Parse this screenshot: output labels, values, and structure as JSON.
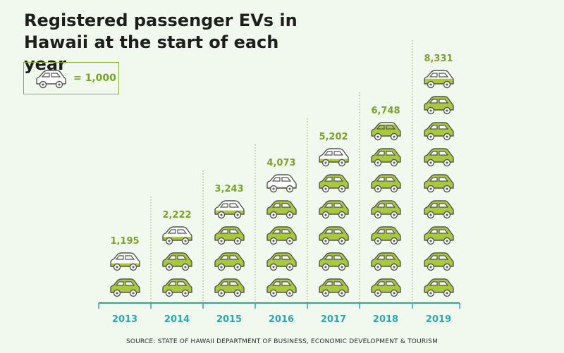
{
  "chart_data": {
    "type": "pictogram",
    "title_line1": "Registered passenger EVs in",
    "title_line2": "Hawaii at the start of each year",
    "legend": {
      "icon": "car-icon",
      "label": "= 1,000"
    },
    "unit_value": 1000,
    "categories": [
      "2013",
      "2014",
      "2015",
      "2016",
      "2017",
      "2018",
      "2019"
    ],
    "values": [
      1195,
      2222,
      3243,
      4073,
      5202,
      6748,
      8331
    ],
    "value_labels": [
      "1,195",
      "2,222",
      "3,243",
      "4,073",
      "5,202",
      "6,748",
      "8,331"
    ],
    "source": "SOURCE: STATE OF HAWAII DEPARTMENT OF BUSINESS, ECONOMIC DEVELOPMENT & TOURISM"
  },
  "colors": {
    "background": "#f1f8ed",
    "car_fill": "#a9c93c",
    "car_outline": "#545454",
    "value_label": "#7aa32a",
    "axis": "#2aa8ae",
    "year_label": "#2aa8ae",
    "dotted_line": "#8ab13a"
  }
}
